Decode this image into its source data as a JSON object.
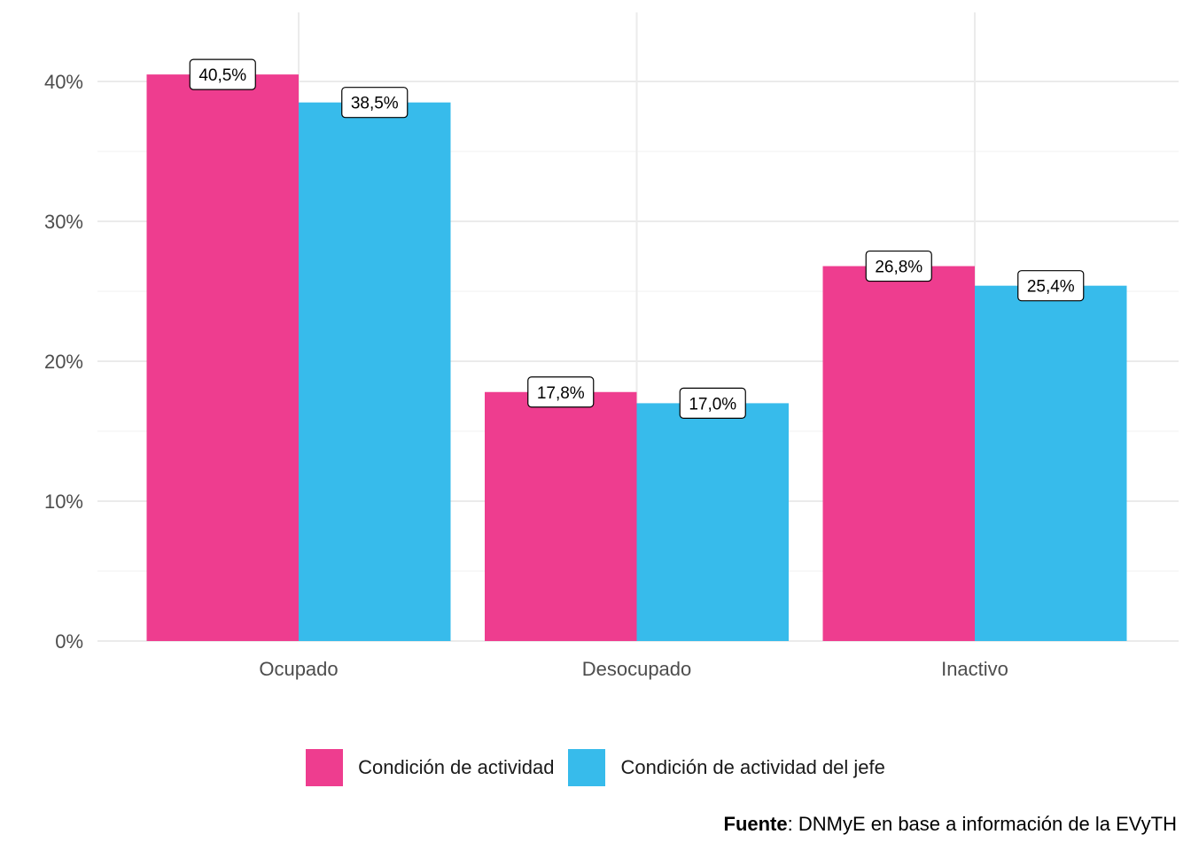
{
  "chart_data": {
    "type": "bar",
    "categories": [
      "Ocupado",
      "Desocupado",
      "Inactivo"
    ],
    "series": [
      {
        "name": "Condición de actividad",
        "values": [
          40.5,
          17.8,
          26.8
        ],
        "labels": [
          "40,5%",
          "17,8%",
          "26,8%"
        ],
        "color": "#EE3D8F"
      },
      {
        "name": "Condición de actividad del jefe",
        "values": [
          38.5,
          17.0,
          25.4
        ],
        "labels": [
          "38,5%",
          "17,0%",
          "25,4%"
        ],
        "color": "#37BBEB"
      }
    ],
    "yticks": [
      "0%",
      "10%",
      "20%",
      "30%",
      "40%"
    ],
    "ylim": [
      0,
      45
    ],
    "grid": true,
    "legend_position": "bottom",
    "title": "",
    "xlabel": "",
    "ylabel": ""
  },
  "caption": {
    "source_label": "Fuente",
    "source_text": ": DNMyE en base a información de la EVyTH"
  }
}
